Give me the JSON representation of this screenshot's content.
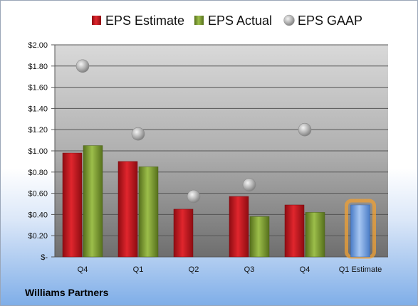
{
  "company": "Williams Partners",
  "colors": {
    "estimate": "#c0141c",
    "actual": "#7a9a2e",
    "gaap": "#a9a9a9",
    "future_estimate": "#6f9fe0",
    "future_glow": "#f0a033"
  },
  "chart_data": {
    "type": "bar",
    "categories": [
      "Q4",
      "Q1",
      "Q2",
      "Q3",
      "Q4",
      "Q1 Estimate"
    ],
    "series": [
      {
        "name": "EPS Estimate",
        "values": [
          0.98,
          0.9,
          0.45,
          0.57,
          0.49,
          0.49
        ]
      },
      {
        "name": "EPS Actual",
        "values": [
          1.05,
          0.85,
          null,
          0.38,
          0.42,
          null
        ]
      },
      {
        "name": "EPS GAAP",
        "kind": "marker",
        "values": [
          1.8,
          1.16,
          0.57,
          0.68,
          1.2,
          null
        ]
      }
    ],
    "y_tick_labels": [
      "$-",
      "$0.20",
      "$0.40",
      "$0.60",
      "$0.80",
      "$1.00",
      "$1.20",
      "$1.40",
      "$1.60",
      "$1.80",
      "$2.00"
    ],
    "ylim": [
      0,
      2.0
    ],
    "grid": true,
    "legend_position": "top",
    "highlighted_category": "Q1 Estimate"
  }
}
